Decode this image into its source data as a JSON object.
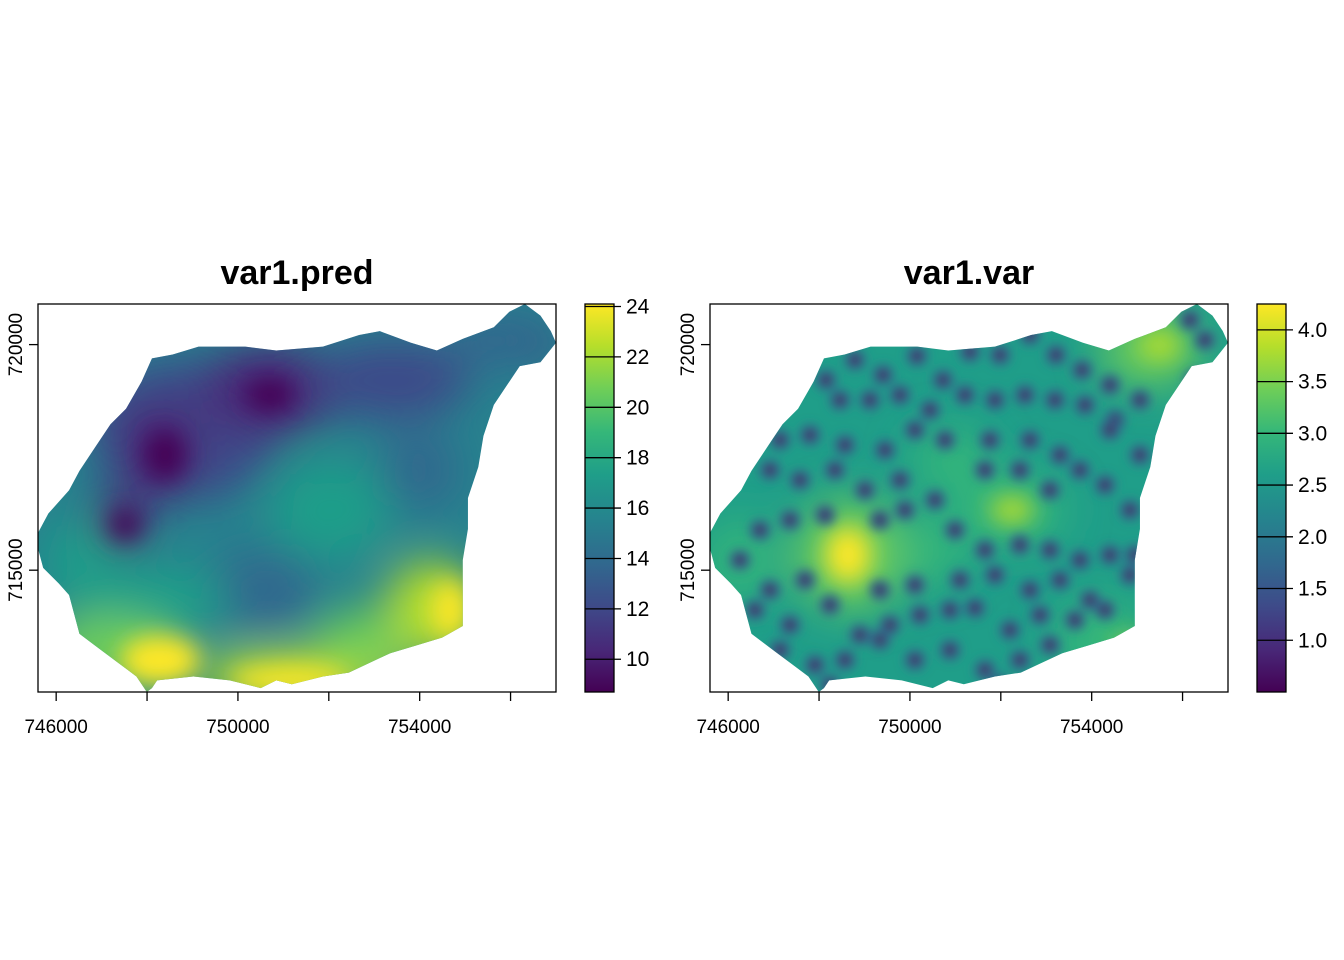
{
  "colors": {
    "viridis": [
      "#440154",
      "#482878",
      "#3e4a89",
      "#31688e",
      "#26828e",
      "#1f9e89",
      "#35b779",
      "#6ece58",
      "#b5de2b",
      "#fde725"
    ],
    "frame": "#000000",
    "background": "#ffffff"
  },
  "chart_data": [
    {
      "type": "heatmap",
      "title": "var1.pred",
      "xlim": [
        745600,
        757000
      ],
      "ylim": [
        712300,
        720900
      ],
      "x_ticks": [
        746000,
        748000,
        750000,
        752000,
        754000,
        756000
      ],
      "x_tick_labels": [
        "746000",
        "",
        "750000",
        "",
        "754000",
        ""
      ],
      "y_ticks": [
        715000,
        720000
      ],
      "y_tick_labels": [
        "715000",
        "720000"
      ],
      "legend": {
        "position": "right",
        "range": [
          8.7,
          24.1
        ],
        "breaks": [
          10,
          12,
          14,
          16,
          18,
          20,
          22,
          24
        ],
        "labels": [
          "10",
          "12",
          "14",
          "16",
          "18",
          "20",
          "22",
          "24"
        ]
      }
    },
    {
      "type": "heatmap",
      "title": "var1.var",
      "xlim": [
        745600,
        757000
      ],
      "ylim": [
        712300,
        720900
      ],
      "x_ticks": [
        746000,
        748000,
        750000,
        752000,
        754000,
        756000
      ],
      "x_tick_labels": [
        "746000",
        "",
        "750000",
        "",
        "754000",
        ""
      ],
      "y_ticks": [
        715000,
        720000
      ],
      "y_tick_labels": [
        "715000",
        "720000"
      ],
      "legend": {
        "position": "right",
        "range": [
          0.5,
          4.25
        ],
        "breaks": [
          1.0,
          1.5,
          2.0,
          2.5,
          3.0,
          3.5,
          4.0
        ],
        "labels": [
          "1.0",
          "1.5",
          "2.0",
          "2.5",
          "3.0",
          "3.5",
          "4.0"
        ]
      }
    }
  ]
}
